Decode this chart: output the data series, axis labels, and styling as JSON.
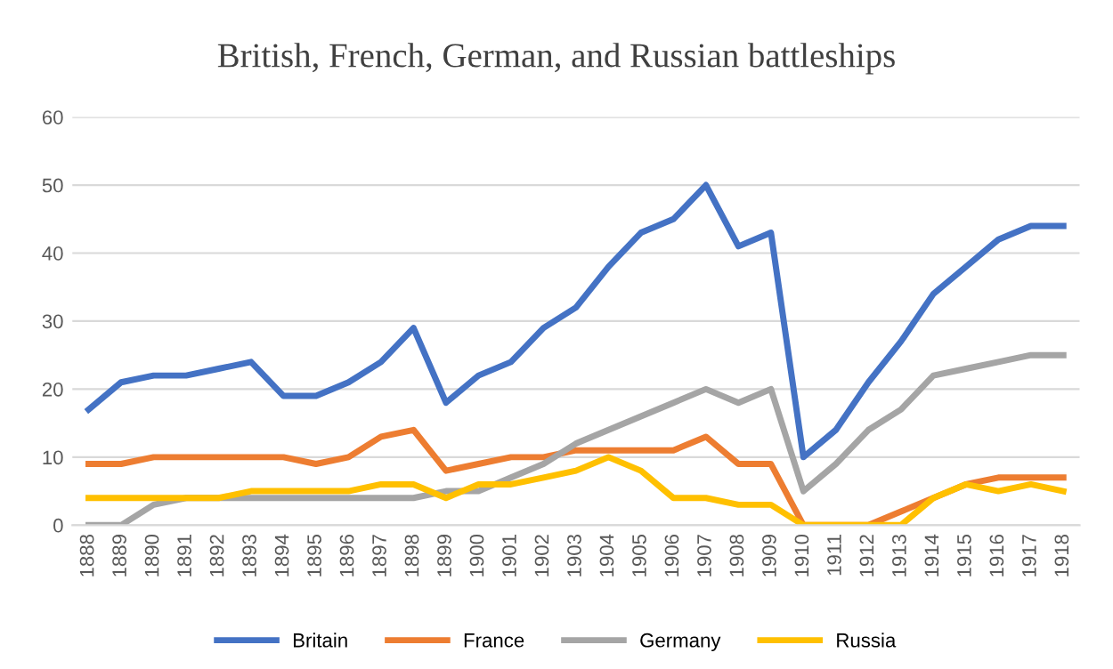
{
  "chart_data": {
    "type": "line",
    "title": "British, French, German, and Russian battleships",
    "categories": [
      "1888",
      "1889",
      "1890",
      "1891",
      "1892",
      "1893",
      "1894",
      "1895",
      "1896",
      "1897",
      "1898",
      "1899",
      "1900",
      "1901",
      "1902",
      "1903",
      "1904",
      "1905",
      "1906",
      "1907",
      "1908",
      "1909",
      "1910",
      "1911",
      "1912",
      "1913",
      "1914",
      "1915",
      "1916",
      "1917",
      "1918"
    ],
    "series": [
      {
        "name": "Britain",
        "color": "#4472c4",
        "values": [
          17,
          21,
          22,
          22,
          23,
          24,
          19,
          19,
          21,
          24,
          29,
          18,
          22,
          24,
          29,
          32,
          38,
          43,
          45,
          50,
          41,
          43,
          10,
          14,
          21,
          27,
          34,
          38,
          42,
          44,
          44
        ]
      },
      {
        "name": "France",
        "color": "#ed7d31",
        "values": [
          9,
          9,
          10,
          10,
          10,
          10,
          10,
          9,
          10,
          13,
          14,
          8,
          9,
          10,
          10,
          11,
          11,
          11,
          11,
          13,
          9,
          9,
          0,
          0,
          0,
          2,
          4,
          6,
          7,
          7,
          7
        ]
      },
      {
        "name": "Germany",
        "color": "#a5a5a5",
        "values": [
          0,
          0,
          3,
          4,
          4,
          4,
          4,
          4,
          4,
          4,
          4,
          5,
          5,
          7,
          9,
          12,
          14,
          16,
          18,
          20,
          18,
          20,
          5,
          9,
          14,
          17,
          22,
          23,
          24,
          25,
          25
        ]
      },
      {
        "name": "Russia",
        "color": "#ffc000",
        "values": [
          4,
          4,
          4,
          4,
          4,
          5,
          5,
          5,
          5,
          6,
          6,
          4,
          6,
          6,
          7,
          8,
          10,
          8,
          4,
          4,
          3,
          3,
          0,
          0,
          0,
          0,
          4,
          6,
          5,
          6,
          5
        ]
      }
    ],
    "ylim": [
      0,
      60
    ],
    "yticks": [
      0,
      10,
      20,
      30,
      40,
      50,
      60
    ],
    "grid": "y",
    "legend": "bottom",
    "marker": "none",
    "line_style": "solid"
  }
}
